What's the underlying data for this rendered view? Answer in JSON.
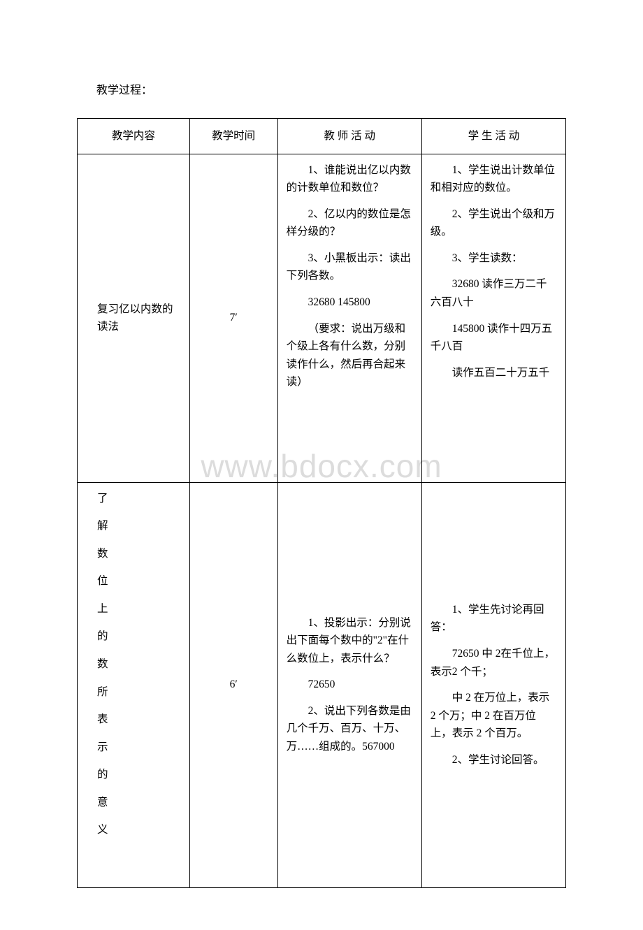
{
  "watermark": "www.bdocx.com",
  "pre_text": "教学过程：",
  "table": {
    "headers": {
      "col1": "教学内容",
      "col2": "教学时间",
      "col3": "教 师 活 动",
      "col4": "学 生 活 动"
    },
    "rows": [
      {
        "col1": "复习亿以内数的读法",
        "col2": "7′",
        "col3": [
          "1、谁能说出亿以内数的计数单位和数位？",
          "2、亿以内的数位是怎样分级的？",
          "3、小黑板出示：读出下列各数。",
          "32680   145800",
          "（要求：说出万级和个级上各有什么数，分别读作什么，然后再合起来读）"
        ],
        "col4": [
          "1、学生说出计数单位和相对应的数位。",
          "2、学生说出个级和万级。",
          "3、学生读数：",
          "32680 读作三万二千六百八十",
          "145800 读作十四万五千八百",
          "读作五百二十万五千"
        ]
      },
      {
        "col1_vertical": [
          "了",
          "解",
          "数",
          "位",
          "上",
          "的",
          "数",
          "所",
          "表",
          "示",
          "的",
          "意",
          "义"
        ],
        "col2": "6′",
        "col3": [
          "1、投影出示：分别说出下面每个数中的\"2\"在什么数位上，表示什么？",
          "72650",
          "2、说出下列各数是由几个千万、百万、十万、万……组成的。567000"
        ],
        "col4": [
          "1、学生先讨论再回答：",
          "72650 中 2在千位上，表示2 个千；",
          "  中 2 在万位上，表示 2 个万；中 2 在百万位上，表示 2 个百万。",
          "2、学生讨论回答。"
        ]
      }
    ]
  }
}
